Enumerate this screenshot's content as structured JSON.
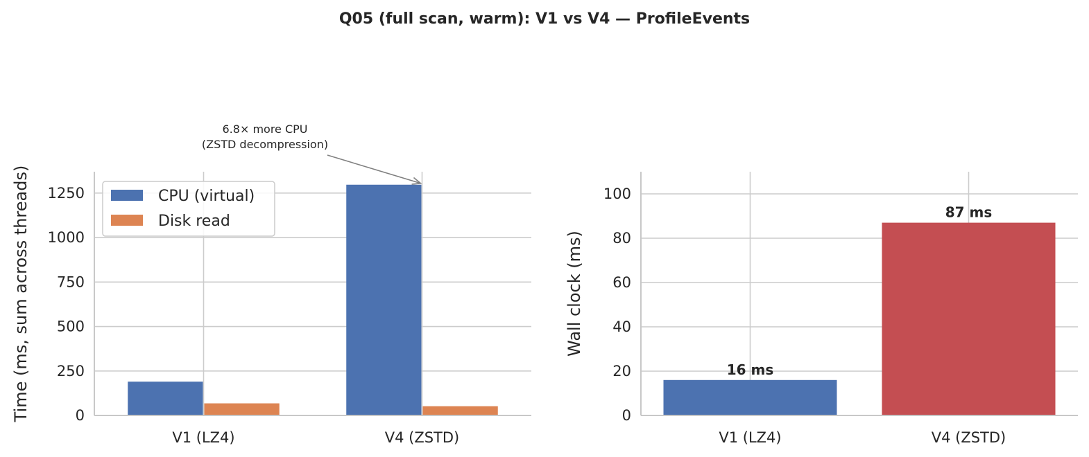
{
  "figure_title": "Q05 (full scan, warm): V1 vs V4 — ProfileEvents",
  "chart_data": [
    {
      "type": "bar",
      "categories": [
        "V1 (LZ4)",
        "V4 (ZSTD)"
      ],
      "series": [
        {
          "name": "CPU (virtual)",
          "color": "#4c72b0",
          "values": [
            190,
            1297
          ]
        },
        {
          "name": "Disk read",
          "color": "#dd8452",
          "values": [
            68,
            52
          ]
        }
      ],
      "xlabel": "",
      "ylabel": "Time (ms, sum across threads)",
      "ylim": [
        0,
        1370
      ],
      "yticks": [
        0,
        250,
        500,
        750,
        1000,
        1250
      ],
      "grid": true,
      "legend": "upper-left",
      "annotation": {
        "lines": [
          "6.8× more CPU",
          "(ZSTD decompression)"
        ],
        "target_category": "V4 (ZSTD)",
        "target_series": "CPU (virtual)"
      }
    },
    {
      "type": "bar",
      "categories": [
        "V1 (LZ4)",
        "V4 (ZSTD)"
      ],
      "values": [
        16,
        87
      ],
      "colors": [
        "#4c72b0",
        "#c44e52"
      ],
      "data_labels": [
        "16 ms",
        "87 ms"
      ],
      "xlabel": "",
      "ylabel": "Wall clock (ms)",
      "ylim": [
        0,
        110
      ],
      "yticks": [
        0,
        20,
        40,
        60,
        80,
        100
      ],
      "grid": true
    }
  ]
}
